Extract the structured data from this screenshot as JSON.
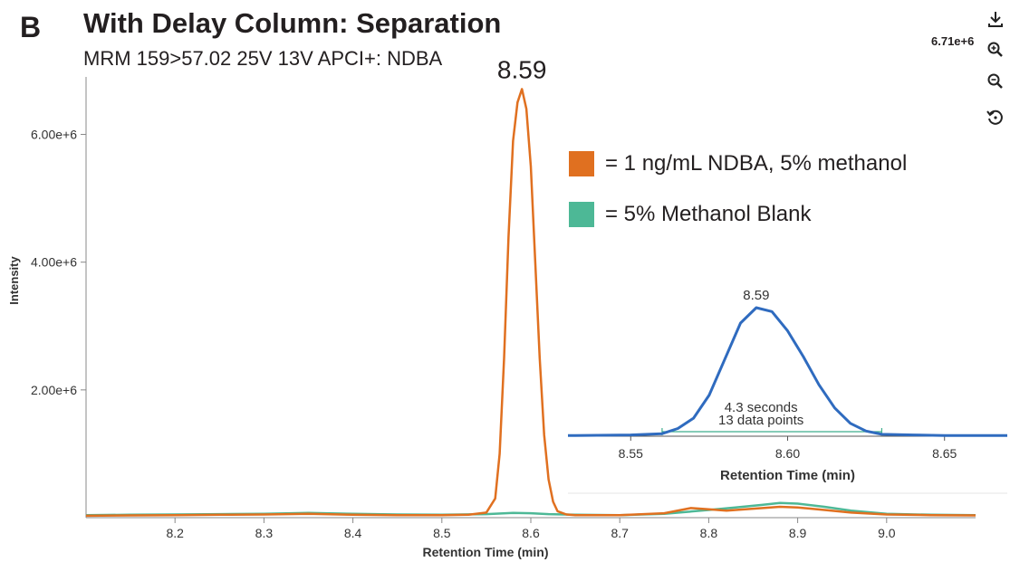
{
  "panel_letter": "B",
  "title": "With Delay Column: Separation",
  "subtitle": "MRM 159>57.02 25V 13V APCI+: NDBA",
  "max_intensity_label": "6.71e+6",
  "toolbar": {
    "download_icon": "download-icon",
    "zoom_in_icon": "zoom-in-icon",
    "zoom_out_icon": "zoom-out-icon",
    "reset_icon": "reset-zoom-icon"
  },
  "legend": [
    {
      "label": "= 1 ng/mL NDBA, 5% methanol",
      "color": "#e07020"
    },
    {
      "label": "= 5% Methanol Blank",
      "color": "#4db896"
    }
  ],
  "chart_data": [
    {
      "type": "line",
      "xlabel": "Retention Time (min)",
      "ylabel": "Intensity",
      "xlim": [
        8.1,
        9.1
      ],
      "ylim": [
        0,
        6900000
      ],
      "x_ticks": [
        8.2,
        8.3,
        8.4,
        8.5,
        8.6,
        8.7,
        8.8,
        8.9,
        9.0
      ],
      "x_tick_labels": [
        "8.2",
        "8.3",
        "8.4",
        "8.5",
        "8.6",
        "8.7",
        "8.8",
        "8.9",
        "9.0"
      ],
      "y_ticks": [
        2000000,
        4000000,
        6000000
      ],
      "y_tick_labels": [
        "2.00e+6",
        "4.00e+6",
        "6.00e+6"
      ],
      "grid": false,
      "peak_annotation": {
        "x": 8.59,
        "y": 6710000,
        "label": "8.59"
      },
      "series": [
        {
          "name": "1 ng/mL NDBA, 5% methanol",
          "color": "#e07020",
          "x": [
            8.1,
            8.15,
            8.2,
            8.25,
            8.3,
            8.35,
            8.4,
            8.45,
            8.5,
            8.53,
            8.55,
            8.56,
            8.565,
            8.57,
            8.575,
            8.58,
            8.585,
            8.59,
            8.595,
            8.6,
            8.605,
            8.61,
            8.615,
            8.62,
            8.625,
            8.63,
            8.64,
            8.65,
            8.7,
            8.75,
            8.78,
            8.8,
            8.82,
            8.85,
            8.88,
            8.9,
            8.93,
            8.96,
            9.0,
            9.05,
            9.1
          ],
          "y": [
            30000,
            35000,
            40000,
            45000,
            50000,
            60000,
            45000,
            40000,
            40000,
            45000,
            80000,
            300000,
            1000000,
            2500000,
            4400000,
            5900000,
            6500000,
            6710000,
            6400000,
            5500000,
            4000000,
            2500000,
            1300000,
            600000,
            250000,
            100000,
            50000,
            40000,
            40000,
            70000,
            150000,
            130000,
            110000,
            140000,
            170000,
            160000,
            120000,
            80000,
            50000,
            40000,
            35000
          ]
        },
        {
          "name": "5% Methanol Blank",
          "color": "#4db896",
          "x": [
            8.1,
            8.15,
            8.2,
            8.25,
            8.3,
            8.35,
            8.4,
            8.45,
            8.5,
            8.55,
            8.58,
            8.6,
            8.62,
            8.65,
            8.7,
            8.75,
            8.8,
            8.83,
            8.86,
            8.88,
            8.9,
            8.93,
            8.96,
            9.0,
            9.05,
            9.1
          ],
          "y": [
            40000,
            45000,
            50000,
            55000,
            60000,
            75000,
            60000,
            50000,
            45000,
            55000,
            75000,
            70000,
            55000,
            45000,
            40000,
            60000,
            120000,
            160000,
            200000,
            230000,
            220000,
            170000,
            110000,
            60000,
            45000,
            40000
          ]
        }
      ]
    },
    {
      "type": "line",
      "xlabel": "Retention Time (min)",
      "xlim": [
        8.53,
        8.67
      ],
      "x_ticks": [
        8.55,
        8.6,
        8.65
      ],
      "x_tick_labels": [
        "8.55",
        "8.60",
        "8.65"
      ],
      "grid": false,
      "peak_annotation": {
        "x": 8.59,
        "label": "8.59"
      },
      "width_annotation": {
        "x_start": 8.56,
        "x_end": 8.63,
        "line1": "4.3 seconds",
        "line2": "13 data points"
      },
      "series": [
        {
          "color": "#2f6bbf",
          "x": [
            8.53,
            8.55,
            8.56,
            8.565,
            8.57,
            8.575,
            8.58,
            8.585,
            8.59,
            8.595,
            8.6,
            8.605,
            8.61,
            8.615,
            8.62,
            8.625,
            8.63,
            8.64,
            8.65,
            8.67
          ],
          "y": [
            0.005,
            0.01,
            0.02,
            0.06,
            0.14,
            0.32,
            0.6,
            0.88,
            1.0,
            0.97,
            0.82,
            0.62,
            0.4,
            0.22,
            0.1,
            0.04,
            0.015,
            0.01,
            0.005,
            0.005
          ]
        }
      ]
    }
  ]
}
